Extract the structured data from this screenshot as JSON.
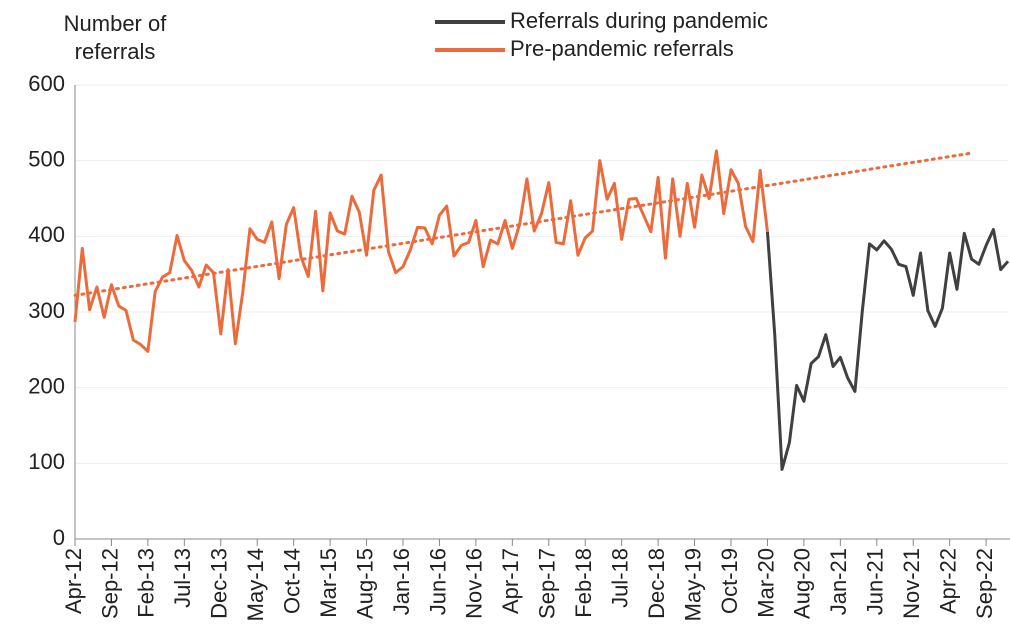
{
  "chart_data": {
    "type": "line",
    "ylabel": "Number of referrals",
    "categories": [
      "Apr-12",
      null,
      null,
      null,
      null,
      "Sep-12",
      null,
      null,
      null,
      null,
      "Feb-13",
      null,
      null,
      null,
      null,
      "Jul-13",
      null,
      null,
      null,
      null,
      "Dec-13",
      null,
      null,
      null,
      null,
      "May-14",
      null,
      null,
      null,
      null,
      "Oct-14",
      null,
      null,
      null,
      null,
      "Mar-15",
      null,
      null,
      null,
      null,
      "Aug-15",
      null,
      null,
      null,
      null,
      "Jan-16",
      null,
      null,
      null,
      null,
      "Jun-16",
      null,
      null,
      null,
      null,
      "Nov-16",
      null,
      null,
      null,
      null,
      "Apr-17",
      null,
      null,
      null,
      null,
      "Sep-17",
      null,
      null,
      null,
      null,
      "Feb-18",
      null,
      null,
      null,
      null,
      "Jul-18",
      null,
      null,
      null,
      null,
      "Dec-18",
      null,
      null,
      null,
      null,
      "May-19",
      null,
      null,
      null,
      null,
      "Oct-19",
      null,
      null,
      null,
      null,
      "Mar-20",
      null,
      null,
      null,
      null,
      "Aug-20",
      null,
      null,
      null,
      null,
      "Jan-21",
      null,
      null,
      null,
      null,
      "Jun-21",
      null,
      null,
      null,
      null,
      "Nov-21",
      null,
      null,
      null,
      null,
      "Apr-22",
      null,
      null,
      null,
      null,
      "Sep-22",
      null,
      null,
      null
    ],
    "series": [
      {
        "name": "Referrals during pandemic",
        "color": "#404040",
        "values": [
          null,
          null,
          null,
          null,
          null,
          null,
          null,
          null,
          null,
          null,
          null,
          null,
          null,
          null,
          null,
          null,
          null,
          null,
          null,
          null,
          null,
          null,
          null,
          null,
          null,
          null,
          null,
          null,
          null,
          null,
          null,
          null,
          null,
          null,
          null,
          null,
          null,
          null,
          null,
          null,
          null,
          null,
          null,
          null,
          null,
          null,
          null,
          null,
          null,
          null,
          null,
          null,
          null,
          null,
          null,
          null,
          null,
          null,
          null,
          null,
          null,
          null,
          null,
          null,
          null,
          null,
          null,
          null,
          null,
          null,
          null,
          null,
          null,
          null,
          null,
          null,
          null,
          null,
          null,
          null,
          null,
          null,
          null,
          null,
          null,
          null,
          null,
          null,
          null,
          null,
          null,
          null,
          null,
          null,
          null,
          406,
          270,
          92,
          127,
          203,
          182,
          232,
          241,
          270,
          228,
          240,
          213,
          195,
          300,
          390,
          382,
          394,
          383,
          363,
          360,
          322,
          378,
          302,
          281,
          305,
          378,
          330,
          404,
          370,
          363,
          388,
          409,
          356,
          367
        ]
      },
      {
        "name": "Pre-pandemic referrals",
        "color": "#ec6b3c",
        "values": [
          287,
          384,
          303,
          333,
          293,
          336,
          308,
          302,
          263,
          257,
          248,
          327,
          346,
          352,
          401,
          368,
          355,
          333,
          362,
          352,
          271,
          356,
          258,
          325,
          410,
          396,
          392,
          419,
          344,
          416,
          438,
          373,
          347,
          433,
          328,
          431,
          407,
          403,
          453,
          432,
          375,
          461,
          481,
          380,
          352,
          360,
          382,
          412,
          411,
          390,
          428,
          440,
          374,
          388,
          392,
          421,
          360,
          395,
          390,
          421,
          384,
          416,
          476,
          407,
          430,
          471,
          392,
          390,
          447,
          375,
          398,
          407,
          500,
          449,
          470,
          396,
          449,
          450,
          428,
          406,
          478,
          371,
          476,
          400,
          470,
          412,
          481,
          450,
          513,
          430,
          488,
          470,
          413,
          393,
          487,
          406,
          null,
          null,
          null,
          null,
          null,
          null,
          null,
          null,
          null,
          null,
          null,
          null,
          null,
          null,
          null,
          null,
          null,
          null,
          null,
          null,
          null,
          null,
          null,
          null,
          null,
          null,
          null,
          null,
          null,
          null,
          null,
          null,
          null
        ]
      },
      {
        "color": "#ec6b3c",
        "style": "dotted",
        "values": [
          322,
          null,
          null,
          null,
          null,
          null,
          null,
          null,
          null,
          null,
          null,
          null,
          null,
          null,
          null,
          null,
          null,
          null,
          null,
          null,
          null,
          null,
          null,
          null,
          null,
          null,
          null,
          null,
          null,
          null,
          null,
          null,
          null,
          null,
          null,
          null,
          null,
          null,
          null,
          null,
          null,
          null,
          null,
          null,
          null,
          null,
          null,
          null,
          null,
          null,
          null,
          null,
          null,
          null,
          null,
          null,
          null,
          null,
          null,
          null,
          null,
          null,
          null,
          null,
          null,
          null,
          null,
          null,
          null,
          null,
          null,
          null,
          null,
          null,
          null,
          null,
          null,
          null,
          null,
          null,
          null,
          null,
          null,
          null,
          null,
          null,
          null,
          null,
          null,
          null,
          null,
          null,
          null,
          null,
          null,
          null,
          null,
          null,
          null,
          null,
          null,
          null,
          null,
          null,
          null,
          null,
          null,
          null,
          null,
          null,
          null,
          null,
          null,
          null,
          null,
          null,
          null,
          null,
          null,
          null,
          null,
          null,
          null,
          510,
          null,
          null,
          null,
          null,
          null
        ]
      }
    ],
    "ylim": [
      0,
      600
    ],
    "yticks": [
      0,
      100,
      200,
      300,
      400,
      500,
      600
    ],
    "grid": true
  }
}
